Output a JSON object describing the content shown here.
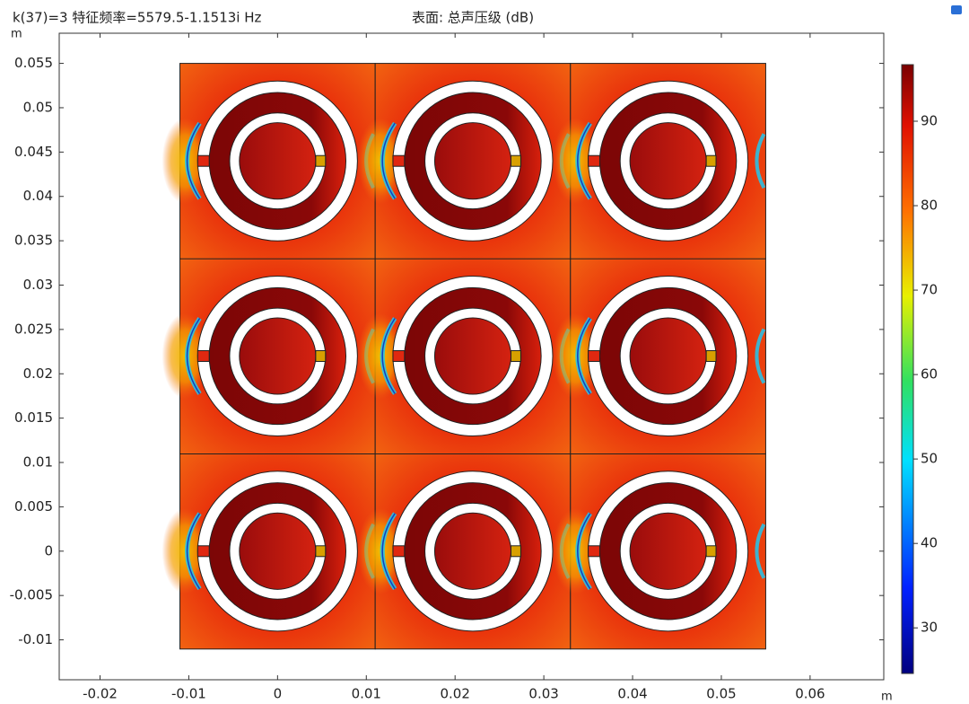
{
  "chart_data": {
    "type": "surface",
    "title": "k(37)=3 特征频率=5579.5-1.1513i Hz",
    "subtitle": "表面: 总声压级 (dB)",
    "xlabel": "m",
    "ylabel": "m",
    "xlim": [
      -0.0246,
      0.0683
    ],
    "xticks": [
      -0.02,
      -0.01,
      0,
      0.01,
      0.02,
      0.03,
      0.04,
      0.05,
      0.06
    ],
    "ylim": [
      -0.0145,
      0.0584
    ],
    "yticks": [
      -0.01,
      -0.005,
      0,
      0.005,
      0.01,
      0.015,
      0.02,
      0.025,
      0.03,
      0.035,
      0.04,
      0.045,
      0.05,
      0.055
    ],
    "clim": [
      24.6,
      96.7
    ],
    "cticks": [
      30,
      40,
      50,
      60,
      70,
      80,
      90
    ]
  }
}
